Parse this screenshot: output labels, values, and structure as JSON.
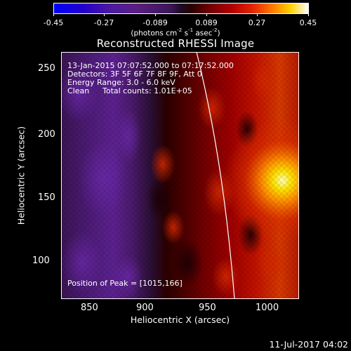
{
  "colorbar": {
    "tick_labels": [
      "-0.45",
      "-0.27",
      "-0.089",
      "0.089",
      "0.27",
      "0.45"
    ],
    "units_text": "(photons cm",
    "units_exp1": "-2",
    "units_mid": " s",
    "units_exp2": "-1",
    "units_mid2": " asec",
    "units_exp3": "-2",
    "units_end": ")"
  },
  "title": "Reconstructed RHESSI Image",
  "annotations": {
    "time_range": "13-Jan-2015 07:07:52.000 to 07:17:52.000",
    "detectors": "Detectors: 3F 5F 6F 7F 8F 9F, Att 0",
    "energy": "Energy Range: 3.0 - 6.0 keV",
    "clean": "Clean",
    "counts": "Total counts: 1.01E+05",
    "peak": "Position of Peak = [1015,166]"
  },
  "axes": {
    "x_title": "Heliocentric X (arcsec)",
    "y_title": "Heliocentric Y (arcsec)",
    "x_ticks": [
      "850",
      "900",
      "950",
      "1000"
    ],
    "y_ticks": [
      "100",
      "150",
      "200",
      "250"
    ]
  },
  "footer": "11-Jul-2017 04:02",
  "colors": {
    "background": "#000000",
    "frame": "#ffffff",
    "limb_line": "#ffffff"
  }
}
